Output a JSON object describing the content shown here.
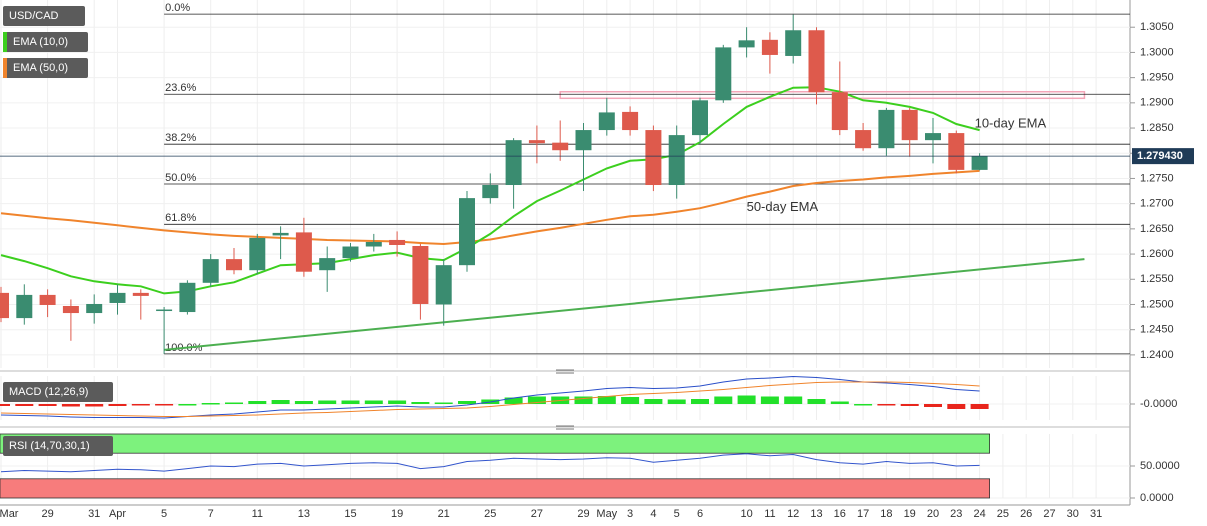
{
  "chart_data": [
    {
      "type": "candlestick",
      "title": "USD/CAD",
      "categories": [
        "Mar",
        null,
        "29",
        null,
        "31",
        "Apr",
        null,
        "5",
        null,
        "7",
        null,
        "11",
        null,
        "13",
        null,
        "15",
        null,
        "19",
        null,
        "21",
        null,
        "25",
        null,
        "27",
        null,
        "29",
        "May",
        "3",
        "4",
        "5",
        "6",
        null,
        "10",
        "11",
        "12",
        "13",
        "16",
        "17",
        "18",
        "19",
        "20",
        "23",
        "24",
        "25",
        "26",
        "27",
        "30",
        "31"
      ],
      "ohlc": {
        "up_color": "#3a8c70",
        "down_color": "#de5a4c",
        "open": [
          1.2523,
          1.2473,
          1.2519,
          1.2497,
          1.2483,
          1.2503,
          1.2523,
          1.2487,
          1.2485,
          1.2543,
          1.259,
          1.2568,
          1.2637,
          1.2643,
          1.2568,
          1.2592,
          1.2615,
          1.2628,
          1.2616,
          1.25,
          1.2578,
          1.2711,
          1.2737,
          1.2826,
          1.2821,
          1.2806,
          1.2846,
          1.2882,
          1.2846,
          1.2737,
          1.2836,
          1.2905,
          1.301,
          1.3025,
          1.2993,
          1.3044,
          1.2921,
          1.2846,
          1.281,
          1.2886,
          1.2826,
          1.284,
          1.2767,
          null,
          null,
          null,
          null,
          null
        ],
        "high": [
          1.2535,
          1.254,
          1.253,
          1.251,
          1.252,
          1.254,
          1.253,
          1.2495,
          1.2548,
          1.26,
          1.2612,
          1.264,
          1.2655,
          1.2672,
          1.2615,
          1.2622,
          1.264,
          1.2645,
          1.262,
          1.259,
          1.2725,
          1.276,
          1.283,
          1.2855,
          1.2865,
          1.286,
          1.291,
          1.2893,
          1.2855,
          1.2855,
          1.291,
          1.3015,
          1.305,
          1.304,
          1.3075,
          1.305,
          1.2982,
          1.286,
          1.289,
          1.289,
          1.287,
          1.2845,
          1.28,
          null,
          null,
          null,
          null,
          null
        ],
        "low": [
          1.2465,
          1.246,
          1.2475,
          1.2428,
          1.2462,
          1.248,
          1.247,
          1.2402,
          1.248,
          1.2535,
          1.256,
          1.256,
          1.259,
          1.2555,
          1.2525,
          1.2585,
          1.2605,
          1.2595,
          1.247,
          1.2458,
          1.2565,
          1.27,
          1.269,
          1.278,
          1.2785,
          1.2725,
          1.2835,
          1.2835,
          1.2725,
          1.271,
          1.2818,
          1.29,
          1.299,
          1.2958,
          1.2978,
          1.2897,
          1.2836,
          1.2805,
          1.2795,
          1.2793,
          1.278,
          1.276,
          1.2766,
          null,
          null,
          null,
          null,
          null
        ],
        "close": [
          1.2473,
          1.2519,
          1.2499,
          1.2483,
          1.2501,
          1.2523,
          1.2517,
          1.249,
          1.2543,
          1.259,
          1.2568,
          1.2632,
          1.2642,
          1.2565,
          1.2592,
          1.2615,
          1.2624,
          1.2618,
          1.2501,
          1.2578,
          1.2711,
          1.2737,
          1.2826,
          1.282,
          1.2806,
          1.2846,
          1.2881,
          1.2846,
          1.2737,
          1.2836,
          1.2905,
          1.301,
          1.3024,
          1.2995,
          1.3044,
          1.2921,
          1.2846,
          1.281,
          1.2886,
          1.2826,
          1.284,
          1.2767,
          1.2794,
          null,
          null,
          null,
          null,
          null
        ]
      },
      "series": [
        {
          "name": "EMA (50,0)",
          "color": "#f0842c",
          "values": [
            1.2681,
            1.2676,
            1.2671,
            1.2667,
            1.2662,
            1.2657,
            1.2652,
            1.2647,
            1.2643,
            1.2639,
            1.2636,
            1.2634,
            1.2632,
            1.263,
            1.2628,
            1.2627,
            1.2626,
            1.2625,
            1.2622,
            1.262,
            1.2624,
            1.2629,
            1.2637,
            1.2645,
            1.2652,
            1.266,
            1.2668,
            1.2675,
            1.2678,
            1.2684,
            1.2691,
            1.2702,
            1.2714,
            1.2724,
            1.2735,
            1.2741,
            1.2745,
            1.2748,
            1.2752,
            1.2755,
            1.2759,
            1.2762,
            1.2765,
            null,
            null,
            null,
            null,
            null
          ]
        },
        {
          "name": "EMA (10,0)",
          "color": "#3ccf1e",
          "values": [
            1.2598,
            1.2586,
            1.2572,
            1.2556,
            1.2546,
            1.254,
            1.2536,
            1.2522,
            1.2526,
            1.2536,
            1.2544,
            1.2561,
            1.2578,
            1.258,
            1.2582,
            1.259,
            1.2598,
            1.2603,
            1.2592,
            1.2588,
            1.2612,
            1.264,
            1.2675,
            1.2705,
            1.2726,
            1.2748,
            1.277,
            1.2785,
            1.2788,
            1.2797,
            1.2822,
            1.2858,
            1.2892,
            1.2912,
            1.293,
            1.2931,
            1.2922,
            1.2905,
            1.29,
            1.2892,
            1.288,
            1.2858,
            1.2846,
            null,
            null,
            null,
            null,
            null
          ]
        }
      ],
      "annotations": [
        {
          "text": "10-day EMA",
          "color": "#3ccf1e"
        },
        {
          "text": "50-day EMA",
          "color": "#f0842c"
        }
      ],
      "fib_levels": [
        {
          "label": "0.0%",
          "value": 1.3076
        },
        {
          "label": "23.6%",
          "value": 1.2917
        },
        {
          "label": "38.2%",
          "value": 1.2818
        },
        {
          "label": "50.0%",
          "value": 1.2739
        },
        {
          "label": "61.8%",
          "value": 1.2659
        },
        {
          "label": "100.0%",
          "value": 1.2402
        }
      ],
      "trendline": {
        "color": "#4caf50",
        "x": [
          7,
          46.5
        ],
        "values": [
          1.241,
          1.259
        ]
      },
      "resistance_zone": {
        "color": "#f4a6b8",
        "x": [
          24,
          46.5
        ],
        "range": [
          1.2909,
          1.2922
        ]
      },
      "last_price": {
        "value": 1.27943,
        "label": "1.279430",
        "color": "#1f3b57"
      },
      "ylim": [
        1.2374,
        1.3104
      ],
      "yticks": [
        {
          "value": 1.305,
          "label": "1.3050"
        },
        {
          "value": 1.3,
          "label": "1.3000"
        },
        {
          "value": 1.295,
          "label": "1.2950"
        },
        {
          "value": 1.29,
          "label": "1.2900"
        },
        {
          "value": 1.285,
          "label": "1.2850"
        },
        {
          "value": 1.28,
          "label": "1.2800"
        },
        {
          "value": 1.275,
          "label": "1.2750"
        },
        {
          "value": 1.27,
          "label": "1.2700"
        },
        {
          "value": 1.265,
          "label": "1.2650"
        },
        {
          "value": 1.26,
          "label": "1.2600"
        },
        {
          "value": 1.255,
          "label": "1.2550"
        },
        {
          "value": 1.25,
          "label": "1.2500"
        },
        {
          "value": 1.245,
          "label": "1.2450"
        },
        {
          "value": 1.24,
          "label": "1.2400"
        }
      ],
      "grid": true
    },
    {
      "type": "macd",
      "title": "MACD (12,26,9)",
      "ylim": [
        -0.0032,
        0.0056
      ],
      "yticks": [
        {
          "value": 0,
          "label": "-0.0000"
        }
      ],
      "histogram": {
        "up_color": "#22e02a",
        "down_color": "#e8251c",
        "values": [
          -0.0004,
          -0.0004,
          -0.0004,
          -0.0005,
          -0.0005,
          -0.0004,
          -0.0003,
          -0.0003,
          0.0,
          0.0002,
          0.0003,
          0.0006,
          0.0008,
          0.0006,
          0.0007,
          0.0007,
          0.0007,
          0.0007,
          0.0004,
          0.0003,
          0.0006,
          0.0009,
          0.0013,
          0.0015,
          0.0015,
          0.0015,
          0.0016,
          0.0014,
          0.001,
          0.0009,
          0.001,
          0.0015,
          0.0017,
          0.0015,
          0.0015,
          0.001,
          0.0005,
          0.0,
          -0.0002,
          -0.0004,
          -0.0006,
          -0.001,
          -0.001,
          null,
          null,
          null,
          null,
          null
        ]
      },
      "series": [
        {
          "color": "#2a4fc9",
          "values": [
            -0.0022,
            -0.0023,
            -0.0024,
            -0.0026,
            -0.0027,
            -0.0027,
            -0.0027,
            -0.0028,
            -0.0025,
            -0.0022,
            -0.002,
            -0.0016,
            -0.0012,
            -0.0012,
            -0.001,
            -0.0008,
            -0.0006,
            -0.0004,
            -0.0006,
            -0.0006,
            -0.0002,
            0.0004,
            0.0012,
            0.0018,
            0.0022,
            0.0026,
            0.0031,
            0.0033,
            0.0031,
            0.0032,
            0.0036,
            0.0044,
            0.005,
            0.0052,
            0.0055,
            0.0053,
            0.0049,
            0.0044,
            0.0042,
            0.0039,
            0.0035,
            0.0029,
            0.0026,
            null,
            null,
            null,
            null,
            null
          ]
        },
        {
          "color": "#f0842c",
          "values": [
            -0.0018,
            -0.0019,
            -0.002,
            -0.0021,
            -0.0022,
            -0.0023,
            -0.0024,
            -0.0025,
            -0.0025,
            -0.0024,
            -0.0023,
            -0.0022,
            -0.002,
            -0.0018,
            -0.0017,
            -0.0015,
            -0.0013,
            -0.0011,
            -0.001,
            -0.0009,
            -0.0008,
            -0.0005,
            -0.0001,
            0.0003,
            0.0007,
            0.0011,
            0.0015,
            0.0019,
            0.0021,
            0.0023,
            0.0026,
            0.0029,
            0.0033,
            0.0037,
            0.004,
            0.0043,
            0.0044,
            0.0044,
            0.0044,
            0.0043,
            0.0041,
            0.0039,
            0.0036,
            null,
            null,
            null,
            null,
            null
          ]
        }
      ]
    },
    {
      "type": "rsi",
      "title": "RSI (14,70,30,1)",
      "ylim": [
        0,
        100
      ],
      "yticks": [
        {
          "value": 50,
          "label": "50.0000"
        },
        {
          "value": 0,
          "label": "0.0000"
        }
      ],
      "bands": [
        {
          "range": [
            70,
            100
          ],
          "color": "#7df27d"
        },
        {
          "range": [
            0,
            30
          ],
          "color": "#f77c7c"
        }
      ],
      "series": [
        {
          "color": "#3355cc",
          "values": [
            41,
            43,
            42,
            41,
            43,
            45,
            44,
            42,
            46,
            50,
            49,
            53,
            54,
            50,
            52,
            54,
            55,
            54,
            46,
            49,
            57,
            59,
            62,
            61,
            60,
            61,
            63,
            62,
            56,
            59,
            62,
            67,
            69,
            66,
            68,
            60,
            55,
            53,
            57,
            54,
            55,
            50,
            51,
            null,
            null,
            null,
            null,
            null
          ]
        }
      ]
    }
  ]
}
